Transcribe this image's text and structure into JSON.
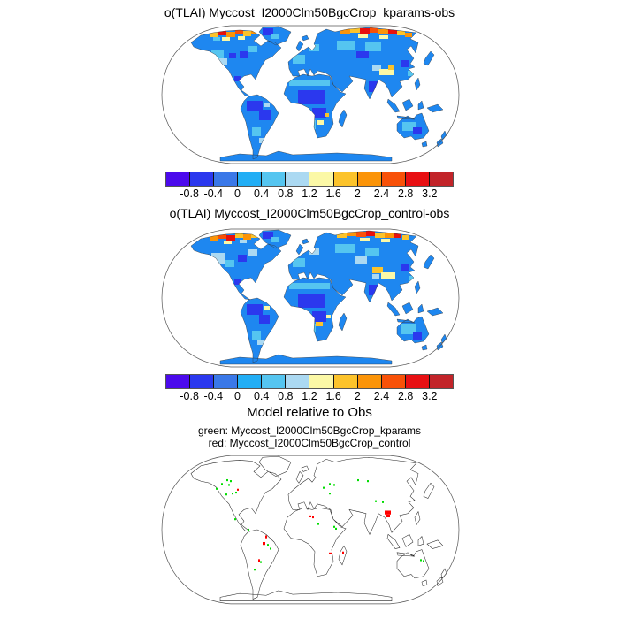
{
  "colors": {
    "g": "#00DD00",
    "r": "#FF0000"
  },
  "colorbar": {
    "colors": [
      "#4B0AEC",
      "#2B38EE",
      "#3A78E8",
      "#22AEF5",
      "#55C5F0",
      "#ABD9F2",
      "#FBF8A6",
      "#FCC32B",
      "#FB9408",
      "#F85108",
      "#E81013",
      "#C22429"
    ],
    "ticks": [
      "-0.8",
      "-0.4",
      "0",
      "0.4",
      "0.8",
      "1.2",
      "1.6",
      "2",
      "2.4",
      "2.8",
      "3.2"
    ]
  },
  "panels": [
    {
      "title": "o(TLAI) Myccost_I2000Clm50BgcCrop_kparams-obs",
      "type": "filled-map",
      "base_land_color": "#1E87F0",
      "patches": [
        [
          56,
          8,
          10,
          6,
          "#FCC32B"
        ],
        [
          66,
          5,
          9,
          7,
          "#E8100D"
        ],
        [
          75,
          8,
          10,
          6,
          "#FB9408"
        ],
        [
          85,
          5,
          9,
          6,
          "#F85108"
        ],
        [
          94,
          7,
          9,
          6,
          "#FCC32B"
        ],
        [
          103,
          6,
          8,
          5,
          "#FB9408"
        ],
        [
          70,
          14,
          9,
          4,
          "#FBF8A6"
        ],
        [
          88,
          13,
          8,
          4,
          "#FBF8A6"
        ],
        [
          60,
          14,
          8,
          4,
          "#55C5F0"
        ],
        [
          116,
          4,
          12,
          8,
          "#2B38EE"
        ],
        [
          126,
          10,
          9,
          6,
          "#55C5F0"
        ],
        [
          58,
          28,
          14,
          10,
          "#55C5F0"
        ],
        [
          66,
          38,
          10,
          8,
          "#ABD9F2"
        ],
        [
          78,
          32,
          8,
          6,
          "#2B38EE"
        ],
        [
          64,
          44,
          5,
          4,
          "#FCC32B"
        ],
        [
          90,
          30,
          10,
          8,
          "#2B38EE"
        ],
        [
          100,
          24,
          10,
          7,
          "#55C5F0"
        ],
        [
          84,
          58,
          8,
          6,
          "#2B38EE"
        ],
        [
          98,
          86,
          18,
          12,
          "#2B38EE"
        ],
        [
          112,
          96,
          14,
          12,
          "#2B38EE"
        ],
        [
          104,
          116,
          10,
          10,
          "#55C5F0"
        ],
        [
          118,
          88,
          6,
          5,
          "#ABD9F2"
        ],
        [
          112,
          128,
          6,
          6,
          "#ABD9F2"
        ],
        [
          150,
          34,
          14,
          10,
          "#55C5F0"
        ],
        [
          168,
          22,
          12,
          8,
          "#55C5F0"
        ],
        [
          204,
          5,
          11,
          6,
          "#FB9408"
        ],
        [
          215,
          3,
          11,
          6,
          "#FCC32B"
        ],
        [
          226,
          4,
          11,
          6,
          "#E8100D"
        ],
        [
          237,
          3,
          10,
          6,
          "#F85108"
        ],
        [
          247,
          5,
          11,
          6,
          "#FB9408"
        ],
        [
          258,
          5,
          10,
          6,
          "#E8100D"
        ],
        [
          268,
          7,
          9,
          5,
          "#FCC32B"
        ],
        [
          277,
          9,
          8,
          5,
          "#FB9408"
        ],
        [
          224,
          11,
          11,
          4,
          "#FBF8A6"
        ],
        [
          248,
          12,
          10,
          4,
          "#FBF8A6"
        ],
        [
          200,
          18,
          20,
          10,
          "#55C5F0"
        ],
        [
          232,
          20,
          18,
          10,
          "#55C5F0"
        ],
        [
          222,
          30,
          14,
          8,
          "#2B38EE"
        ],
        [
          240,
          46,
          10,
          6,
          "#ABD9F2"
        ],
        [
          248,
          50,
          16,
          7,
          "#FBF8A6"
        ],
        [
          258,
          46,
          7,
          5,
          "#FCC32B"
        ],
        [
          272,
          40,
          10,
          8,
          "#2B38EE"
        ],
        [
          280,
          52,
          8,
          6,
          "#55C5F0"
        ],
        [
          236,
          64,
          14,
          12,
          "#2B38EE"
        ],
        [
          146,
          62,
          46,
          7,
          "#55C5F0"
        ],
        [
          156,
          74,
          30,
          16,
          "#2B38EE"
        ],
        [
          172,
          94,
          16,
          12,
          "#2B38EE"
        ],
        [
          178,
          108,
          7,
          5,
          "#FBF8A6"
        ],
        [
          186,
          100,
          5,
          4,
          "#FCC32B"
        ],
        [
          166,
          108,
          10,
          10,
          "#55C5F0"
        ],
        [
          274,
          110,
          16,
          10,
          "#55C5F0"
        ],
        [
          286,
          116,
          10,
          8,
          "#2B38EE"
        ]
      ]
    },
    {
      "title": "o(TLAI) Myccost_I2000Clm50BgcCrop_control-obs",
      "type": "filled-map",
      "base_land_color": "#1E87F0",
      "patches": [
        [
          56,
          8,
          10,
          6,
          "#FB9408"
        ],
        [
          66,
          5,
          9,
          7,
          "#F85108"
        ],
        [
          75,
          8,
          10,
          6,
          "#E8100D"
        ],
        [
          85,
          5,
          9,
          6,
          "#FCC32B"
        ],
        [
          94,
          7,
          9,
          6,
          "#FB9408"
        ],
        [
          103,
          6,
          8,
          5,
          "#FCC32B"
        ],
        [
          72,
          14,
          9,
          4,
          "#FBF8A6"
        ],
        [
          90,
          13,
          8,
          4,
          "#ABD9F2"
        ],
        [
          116,
          4,
          12,
          8,
          "#2B38EE"
        ],
        [
          126,
          10,
          9,
          6,
          "#55C5F0"
        ],
        [
          58,
          28,
          16,
          12,
          "#ABD9F2"
        ],
        [
          74,
          36,
          10,
          8,
          "#55C5F0"
        ],
        [
          88,
          30,
          10,
          8,
          "#2B38EE"
        ],
        [
          100,
          24,
          10,
          7,
          "#ABD9F2"
        ],
        [
          64,
          46,
          5,
          4,
          "#FBF8A6"
        ],
        [
          84,
          58,
          8,
          6,
          "#2B38EE"
        ],
        [
          98,
          86,
          18,
          12,
          "#2B38EE"
        ],
        [
          112,
          98,
          12,
          10,
          "#2B38EE"
        ],
        [
          104,
          116,
          10,
          10,
          "#55C5F0"
        ],
        [
          118,
          88,
          6,
          5,
          "#FBF8A6"
        ],
        [
          110,
          126,
          8,
          6,
          "#ABD9F2"
        ],
        [
          150,
          34,
          14,
          10,
          "#55C5F0"
        ],
        [
          168,
          22,
          12,
          8,
          "#ABD9F2"
        ],
        [
          200,
          5,
          11,
          6,
          "#FCC32B"
        ],
        [
          211,
          3,
          11,
          6,
          "#FB9408"
        ],
        [
          222,
          4,
          11,
          6,
          "#F85108"
        ],
        [
          233,
          3,
          10,
          6,
          "#E8100D"
        ],
        [
          243,
          5,
          11,
          6,
          "#FCC32B"
        ],
        [
          254,
          5,
          10,
          6,
          "#FB9408"
        ],
        [
          264,
          6,
          9,
          5,
          "#E8100D"
        ],
        [
          274,
          8,
          8,
          5,
          "#FCC32B"
        ],
        [
          226,
          11,
          11,
          4,
          "#FBF8A6"
        ],
        [
          250,
          12,
          10,
          4,
          "#FBF8A6"
        ],
        [
          198,
          18,
          22,
          10,
          "#55C5F0"
        ],
        [
          232,
          22,
          16,
          9,
          "#55C5F0"
        ],
        [
          220,
          32,
          14,
          8,
          "#ABD9F2"
        ],
        [
          240,
          44,
          12,
          7,
          "#FCC32B"
        ],
        [
          250,
          50,
          16,
          7,
          "#FBF8A6"
        ],
        [
          240,
          52,
          8,
          5,
          "#ABD9F2"
        ],
        [
          272,
          40,
          10,
          8,
          "#2B38EE"
        ],
        [
          282,
          54,
          6,
          6,
          "#55C5F0"
        ],
        [
          236,
          64,
          14,
          12,
          "#2B38EE"
        ],
        [
          146,
          62,
          46,
          7,
          "#55C5F0"
        ],
        [
          156,
          74,
          30,
          16,
          "#2B38EE"
        ],
        [
          172,
          94,
          16,
          12,
          "#2B38EE"
        ],
        [
          176,
          106,
          8,
          5,
          "#FCC32B"
        ],
        [
          166,
          108,
          10,
          10,
          "#55C5F0"
        ],
        [
          188,
          98,
          5,
          4,
          "#FBF8A6"
        ],
        [
          272,
          108,
          18,
          12,
          "#55C5F0"
        ],
        [
          286,
          118,
          10,
          8,
          "#2B38EE"
        ]
      ]
    },
    {
      "title": "Model relative to Obs",
      "legend": [
        "green: Myccost_I2000Clm50BgcCrop_kparams",
        "red: Myccost_I2000Clm50BgcCrop_control"
      ],
      "type": "marker-map",
      "markers": [
        [
          69,
          30,
          2,
          2,
          "g"
        ],
        [
          75,
          26,
          2,
          2,
          "g"
        ],
        [
          79,
          27,
          2,
          2,
          "g"
        ],
        [
          77,
          31,
          2,
          2,
          "g"
        ],
        [
          81,
          40,
          2,
          2,
          "g"
        ],
        [
          85,
          39,
          2,
          2,
          "g"
        ],
        [
          74,
          41,
          2,
          2,
          "g"
        ],
        [
          63,
          35,
          2,
          2,
          "g"
        ],
        [
          87,
          36,
          2,
          2,
          "r"
        ],
        [
          84,
          67,
          2,
          2,
          "g"
        ],
        [
          99,
          78,
          2,
          2,
          "g"
        ],
        [
          119,
          85,
          2,
          3,
          "r"
        ],
        [
          116,
          92,
          3,
          3,
          "r"
        ],
        [
          111,
          110,
          2,
          3,
          "r"
        ],
        [
          121,
          94,
          2,
          2,
          "g"
        ],
        [
          124,
          98,
          2,
          2,
          "g"
        ],
        [
          113,
          112,
          2,
          2,
          "g"
        ],
        [
          106,
          120,
          2,
          2,
          "g"
        ],
        [
          191,
          30,
          2,
          2,
          "g"
        ],
        [
          196,
          31,
          2,
          2,
          "g"
        ],
        [
          191,
          40,
          2,
          2,
          "g"
        ],
        [
          184,
          34,
          2,
          2,
          "g"
        ],
        [
          223,
          26,
          2,
          2,
          "g"
        ],
        [
          234,
          27,
          2,
          2,
          "g"
        ],
        [
          243,
          48,
          2,
          2,
          "g"
        ],
        [
          251,
          49,
          2,
          2,
          "g"
        ],
        [
          168,
          64,
          3,
          2,
          "r"
        ],
        [
          172,
          65,
          2,
          2,
          "r"
        ],
        [
          178,
          72,
          2,
          2,
          "g"
        ],
        [
          196,
          75,
          2,
          2,
          "g"
        ],
        [
          198,
          77,
          2,
          2,
          "g"
        ],
        [
          254,
          59,
          7,
          4,
          "r"
        ],
        [
          256,
          63,
          4,
          3,
          "r"
        ],
        [
          206,
          102,
          2,
          3,
          "r"
        ],
        [
          191,
          103,
          3,
          2,
          "r"
        ],
        [
          294,
          110,
          2,
          2,
          "g"
        ],
        [
          297,
          111,
          2,
          2,
          "g"
        ]
      ]
    }
  ],
  "chart_data": [
    {
      "type": "heatmap",
      "title": "o(TLAI) Myccost_I2000Clm50BgcCrop_kparams-obs",
      "projection": "robinson world map",
      "colorbar_ticks": [
        -0.8,
        -0.4,
        0,
        0.4,
        0.8,
        1.2,
        1.6,
        2,
        2.4,
        2.8,
        3.2
      ],
      "legend_position": "bottom colorbar",
      "summary": "TLAI difference (model kparams minus obs); most land negative/near zero (blues), strong positive (orange/red) along Arctic Canada and Siberia, pale yellow over Tibet"
    },
    {
      "type": "heatmap",
      "title": "o(TLAI) Myccost_I2000Clm50BgcCrop_control-obs",
      "projection": "robinson world map",
      "colorbar_ticks": [
        -0.8,
        -0.4,
        0,
        0.4,
        0.8,
        1.2,
        1.6,
        2,
        2.4,
        2.8,
        3.2
      ],
      "legend_position": "bottom colorbar",
      "summary": "TLAI difference (model control minus obs); pattern similar to kparams panel: mostly blues with Arctic orange/red band"
    },
    {
      "type": "scatter",
      "title": "Model relative to Obs",
      "series": [
        {
          "name": "green: Myccost_I2000Clm50BgcCrop_kparams",
          "color": "#00DD00",
          "n_points": 27
        },
        {
          "name": "red: Myccost_I2000Clm50BgcCrop_control",
          "color": "#FF0000",
          "n_points": 10
        }
      ],
      "summary": "outline world map with green markers (N America, Europe, Russia, E Asia, S America, Africa, SE Australia) and red markers (Brazil, Sahel, Indochina, Madagascar, S Africa)"
    }
  ]
}
